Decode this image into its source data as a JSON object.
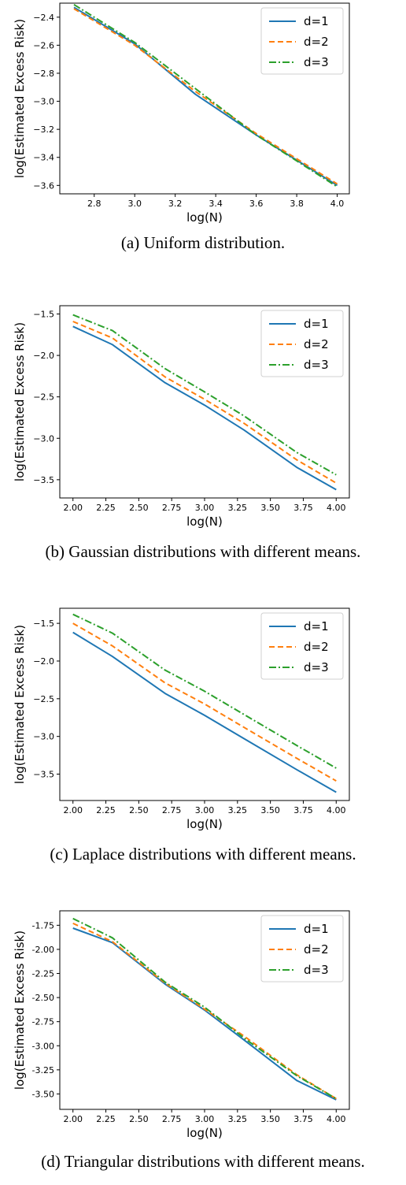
{
  "chart_data": [
    {
      "type": "line",
      "caption": "(a) Uniform distribution.",
      "xlabel": "log(N)",
      "ylabel": "log(Estimated Excess Risk)",
      "xlim": [
        2.63,
        4.06
      ],
      "ylim": [
        -3.66,
        -2.3
      ],
      "xticks": [
        2.8,
        3.0,
        3.2,
        3.4,
        3.6,
        3.8,
        4.0
      ],
      "xtick_labels": [
        "2.8",
        "3.0",
        "3.2",
        "3.4",
        "3.6",
        "3.8",
        "4.0"
      ],
      "yticks": [
        -3.6,
        -3.4,
        -3.2,
        -3.0,
        -2.8,
        -2.6,
        -2.4
      ],
      "ytick_labels": [
        "−3.6",
        "−3.4",
        "−3.2",
        "−3.0",
        "−2.8",
        "−2.6",
        "−2.4"
      ],
      "grid": false,
      "legend": "top-right",
      "series": [
        {
          "name": "d=1",
          "color": "#1f77b4",
          "style": "solid",
          "x": [
            2.7,
            3.0,
            3.3,
            3.6,
            4.0
          ],
          "y": [
            -2.33,
            -2.59,
            -2.95,
            -3.24,
            -3.6
          ]
        },
        {
          "name": "d=2",
          "color": "#ff7f0e",
          "style": "dashed",
          "x": [
            2.7,
            3.0,
            3.3,
            3.6,
            4.0
          ],
          "y": [
            -2.34,
            -2.6,
            -2.93,
            -3.23,
            -3.59
          ]
        },
        {
          "name": "d=3",
          "color": "#2ca02c",
          "style": "dashdot",
          "x": [
            2.7,
            3.0,
            3.3,
            3.6,
            4.0
          ],
          "y": [
            -2.31,
            -2.58,
            -2.91,
            -3.24,
            -3.61
          ]
        }
      ]
    },
    {
      "type": "line",
      "caption": "(b) Gaussian distributions with different means.",
      "xlabel": "log(N)",
      "ylabel": "log(Estimated Excess Risk)",
      "xlim": [
        1.9,
        4.1
      ],
      "ylim": [
        -3.72,
        -1.4
      ],
      "xticks": [
        2.0,
        2.25,
        2.5,
        2.75,
        3.0,
        3.25,
        3.5,
        3.75,
        4.0
      ],
      "xtick_labels": [
        "2.00",
        "2.25",
        "2.50",
        "2.75",
        "3.00",
        "3.25",
        "3.50",
        "3.75",
        "4.00"
      ],
      "yticks": [
        -3.5,
        -3.0,
        -2.5,
        -2.0,
        -1.5
      ],
      "ytick_labels": [
        "−3.5",
        "−3.0",
        "−2.5",
        "−2.0",
        "−1.5"
      ],
      "grid": false,
      "legend": "top-right",
      "series": [
        {
          "name": "d=1",
          "color": "#1f77b4",
          "style": "solid",
          "x": [
            2.0,
            2.3,
            2.7,
            3.0,
            3.3,
            3.7,
            4.0
          ],
          "y": [
            -1.65,
            -1.87,
            -2.33,
            -2.6,
            -2.9,
            -3.35,
            -3.62
          ]
        },
        {
          "name": "d=2",
          "color": "#ff7f0e",
          "style": "dashed",
          "x": [
            2.0,
            2.3,
            2.7,
            3.0,
            3.3,
            3.7,
            4.0
          ],
          "y": [
            -1.59,
            -1.79,
            -2.26,
            -2.53,
            -2.82,
            -3.26,
            -3.54
          ]
        },
        {
          "name": "d=3",
          "color": "#2ca02c",
          "style": "dashdot",
          "x": [
            2.0,
            2.3,
            2.7,
            3.0,
            3.3,
            3.7,
            4.0
          ],
          "y": [
            -1.51,
            -1.7,
            -2.16,
            -2.44,
            -2.73,
            -3.17,
            -3.44
          ]
        }
      ]
    },
    {
      "type": "line",
      "caption": "(c) Laplace distributions with different means.",
      "xlabel": "log(N)",
      "ylabel": "log(Estimated Excess Risk)",
      "xlim": [
        1.9,
        4.1
      ],
      "ylim": [
        -3.85,
        -1.3
      ],
      "xticks": [
        2.0,
        2.25,
        2.5,
        2.75,
        3.0,
        3.25,
        3.5,
        3.75,
        4.0
      ],
      "xtick_labels": [
        "2.00",
        "2.25",
        "2.50",
        "2.75",
        "3.00",
        "3.25",
        "3.50",
        "3.75",
        "4.00"
      ],
      "yticks": [
        -3.5,
        -3.0,
        -2.5,
        -2.0,
        -1.5
      ],
      "ytick_labels": [
        "−3.5",
        "−3.0",
        "−2.5",
        "−2.0",
        "−1.5"
      ],
      "grid": false,
      "legend": "top-right",
      "series": [
        {
          "name": "d=1",
          "color": "#1f77b4",
          "style": "solid",
          "x": [
            2.0,
            2.3,
            2.7,
            3.0,
            3.3,
            3.7,
            4.0
          ],
          "y": [
            -1.62,
            -1.94,
            -2.43,
            -2.72,
            -3.03,
            -3.44,
            -3.74
          ]
        },
        {
          "name": "d=2",
          "color": "#ff7f0e",
          "style": "dashed",
          "x": [
            2.0,
            2.3,
            2.7,
            3.0,
            3.3,
            3.7,
            4.0
          ],
          "y": [
            -1.5,
            -1.8,
            -2.29,
            -2.57,
            -2.88,
            -3.29,
            -3.59
          ]
        },
        {
          "name": "d=3",
          "color": "#2ca02c",
          "style": "dashdot",
          "x": [
            2.0,
            2.3,
            2.7,
            3.0,
            3.3,
            3.7,
            4.0
          ],
          "y": [
            -1.38,
            -1.63,
            -2.12,
            -2.4,
            -2.71,
            -3.12,
            -3.42
          ]
        }
      ]
    },
    {
      "type": "line",
      "caption": "(d) Triangular distributions with different means.",
      "xlabel": "log(N)",
      "ylabel": "log(Estimated Excess Risk)",
      "xlim": [
        1.9,
        4.1
      ],
      "ylim": [
        -3.66,
        -1.6
      ],
      "xticks": [
        2.0,
        2.25,
        2.5,
        2.75,
        3.0,
        3.25,
        3.5,
        3.75,
        4.0
      ],
      "xtick_labels": [
        "2.00",
        "2.25",
        "2.50",
        "2.75",
        "3.00",
        "3.25",
        "3.50",
        "3.75",
        "4.00"
      ],
      "yticks": [
        -3.5,
        -3.25,
        -3.0,
        -2.75,
        -2.5,
        -2.25,
        -2.0,
        -1.75
      ],
      "ytick_labels": [
        "-3.50",
        "-3.25",
        "-3.00",
        "-2.75",
        "-2.50",
        "-2.25",
        "-2.00",
        "-1.75"
      ],
      "grid": false,
      "legend": "top-right",
      "series": [
        {
          "name": "d=1",
          "color": "#1f77b4",
          "style": "solid",
          "x": [
            2.0,
            2.3,
            2.7,
            3.0,
            3.3,
            3.7,
            4.0
          ],
          "y": [
            -1.78,
            -1.93,
            -2.36,
            -2.63,
            -2.94,
            -3.36,
            -3.56
          ]
        },
        {
          "name": "d=2",
          "color": "#ff7f0e",
          "style": "dashed",
          "x": [
            2.0,
            2.3,
            2.7,
            3.0,
            3.3,
            3.7,
            4.0
          ],
          "y": [
            -1.73,
            -1.92,
            -2.35,
            -2.62,
            -2.9,
            -3.3,
            -3.55
          ]
        },
        {
          "name": "d=3",
          "color": "#2ca02c",
          "style": "dashdot",
          "x": [
            2.0,
            2.3,
            2.7,
            3.0,
            3.3,
            3.7,
            4.0
          ],
          "y": [
            -1.68,
            -1.88,
            -2.34,
            -2.6,
            -2.92,
            -3.31,
            -3.55
          ]
        }
      ]
    }
  ]
}
